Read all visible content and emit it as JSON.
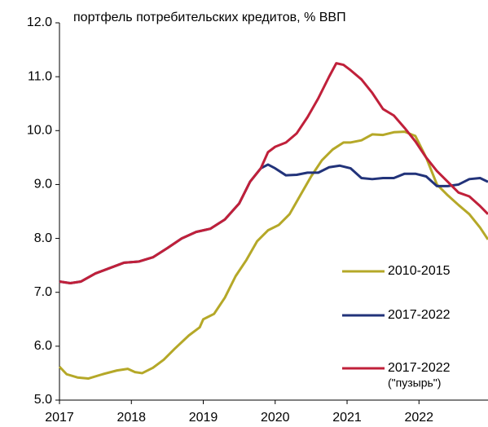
{
  "chart_data": {
    "type": "line",
    "title": "портфель потребительских кредитов, % ВВП",
    "xlim": [
      2017,
      2022.96
    ],
    "xticks": [
      2017,
      2018,
      2019,
      2020,
      2021,
      2022
    ],
    "ylim": [
      5,
      12
    ],
    "yticks": [
      {
        "value": 5,
        "label": "5.0"
      },
      {
        "value": 6,
        "label": "6.0"
      },
      {
        "value": 7,
        "label": "7.0"
      },
      {
        "value": 8,
        "label": "8.0"
      },
      {
        "value": 9,
        "label": "9.0"
      },
      {
        "value": 10,
        "label": "10.0"
      },
      {
        "value": 11,
        "label": "11.0"
      },
      {
        "value": 12,
        "label": "12.0"
      }
    ],
    "grid": false,
    "series": [
      {
        "name": "2010-2015",
        "color": "#b5a828",
        "x": [
          2017.0,
          2017.1,
          2017.25,
          2017.4,
          2017.6,
          2017.8,
          2017.95,
          2018.05,
          2018.15,
          2018.3,
          2018.45,
          2018.6,
          2018.8,
          2018.95,
          2019.0,
          2019.15,
          2019.3,
          2019.45,
          2019.6,
          2019.75,
          2019.9,
          2020.05,
          2020.2,
          2020.35,
          2020.5,
          2020.65,
          2020.8,
          2020.95,
          2021.05,
          2021.2,
          2021.35,
          2021.5,
          2021.65,
          2021.8,
          2021.95,
          2022.1,
          2022.25,
          2022.4,
          2022.55,
          2022.7,
          2022.85,
          2022.96
        ],
        "values": [
          5.62,
          5.48,
          5.42,
          5.4,
          5.48,
          5.55,
          5.58,
          5.52,
          5.5,
          5.6,
          5.75,
          5.95,
          6.2,
          6.35,
          6.5,
          6.6,
          6.9,
          7.3,
          7.6,
          7.95,
          8.15,
          8.25,
          8.45,
          8.8,
          9.15,
          9.45,
          9.65,
          9.78,
          9.78,
          9.82,
          9.93,
          9.92,
          9.97,
          9.98,
          9.9,
          9.5,
          9.0,
          8.8,
          8.62,
          8.45,
          8.2,
          7.98
        ]
      },
      {
        "name": "2017-2022",
        "color": "#22337a",
        "x": [
          2017.0,
          2017.15,
          2017.3,
          2017.5,
          2017.7,
          2017.9,
          2018.1,
          2018.3,
          2018.5,
          2018.7,
          2018.9,
          2019.1,
          2019.3,
          2019.5,
          2019.65,
          2019.8,
          2019.9,
          2020.0,
          2020.15,
          2020.3,
          2020.45,
          2020.6,
          2020.75,
          2020.9,
          2021.05,
          2021.2,
          2021.35,
          2021.5,
          2021.65,
          2021.8,
          2021.95,
          2022.1,
          2022.25,
          2022.4,
          2022.55,
          2022.7,
          2022.85,
          2022.96
        ],
        "values": [
          7.2,
          7.17,
          7.2,
          7.35,
          7.45,
          7.55,
          7.57,
          7.65,
          7.82,
          8.0,
          8.12,
          8.18,
          8.35,
          8.65,
          9.05,
          9.3,
          9.37,
          9.3,
          9.17,
          9.18,
          9.22,
          9.22,
          9.32,
          9.35,
          9.3,
          9.12,
          9.1,
          9.12,
          9.12,
          9.2,
          9.2,
          9.15,
          8.97,
          8.97,
          9.0,
          9.1,
          9.12,
          9.05
        ]
      },
      {
        "name": "2017-2022",
        "name_note": "(\"пузырь\")",
        "color": "#c0203a",
        "x": [
          2017.0,
          2017.15,
          2017.3,
          2017.5,
          2017.7,
          2017.9,
          2018.1,
          2018.3,
          2018.5,
          2018.7,
          2018.9,
          2019.1,
          2019.3,
          2019.5,
          2019.65,
          2019.8,
          2019.9,
          2020.0,
          2020.15,
          2020.3,
          2020.45,
          2020.6,
          2020.75,
          2020.85,
          2020.95,
          2021.05,
          2021.2,
          2021.35,
          2021.5,
          2021.65,
          2021.8,
          2021.95,
          2022.1,
          2022.25,
          2022.4,
          2022.55,
          2022.7,
          2022.85,
          2022.96
        ],
        "values": [
          7.2,
          7.17,
          7.2,
          7.35,
          7.45,
          7.55,
          7.57,
          7.65,
          7.82,
          8.0,
          8.12,
          8.18,
          8.35,
          8.65,
          9.05,
          9.3,
          9.6,
          9.7,
          9.78,
          9.95,
          10.25,
          10.6,
          11.0,
          11.25,
          11.22,
          11.12,
          10.95,
          10.7,
          10.4,
          10.28,
          10.05,
          9.8,
          9.5,
          9.25,
          9.05,
          8.85,
          8.78,
          8.6,
          8.45
        ]
      }
    ]
  }
}
